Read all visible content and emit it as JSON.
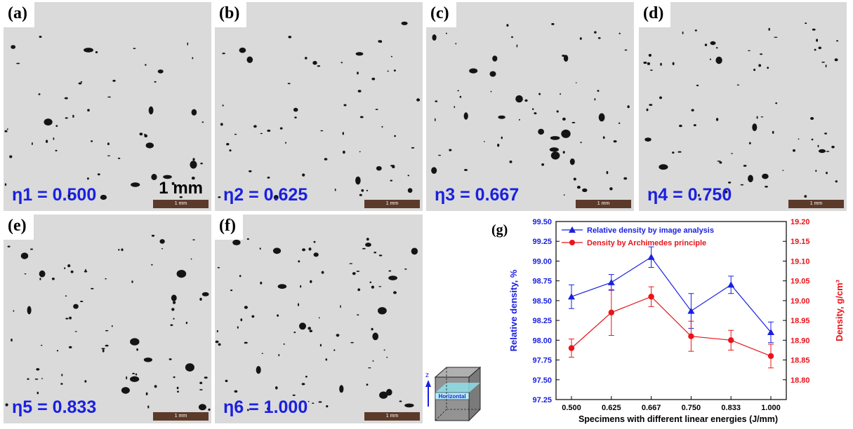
{
  "panels": [
    {
      "letter": "(a)",
      "eta": "η1 = 0.500",
      "scalebar": "1 mm",
      "scale_label": "1 mm"
    },
    {
      "letter": "(b)",
      "eta": "η2 = 0.625",
      "scalebar": "1 mm"
    },
    {
      "letter": "(c)",
      "eta": "η3 = 0.667",
      "scalebar": "1 mm"
    },
    {
      "letter": "(d)",
      "eta": "η4 = 0.750",
      "scalebar": "1 mm"
    },
    {
      "letter": "(e)",
      "eta": "η5 = 0.833",
      "scalebar": "1 mm"
    },
    {
      "letter": "(f)",
      "eta": "η6 = 1.000",
      "scalebar": "1 mm"
    }
  ],
  "cube": {
    "axis_label": "z",
    "plane_label": "Horizontal"
  },
  "chart_data": {
    "type": "line",
    "panel_letter": "(g)",
    "categories": [
      "0.500",
      "0.625",
      "0.667",
      "0.750",
      "0.833",
      "1.000"
    ],
    "xlabel": "Specimens with different linear energies (J/mm)",
    "ylabel": "Relative density, %",
    "y2label": "Density, g/cm³",
    "ylim": [
      97.25,
      99.5
    ],
    "yticks": [
      "97.25",
      "97.50",
      "97.75",
      "98.00",
      "98.25",
      "98.50",
      "98.75",
      "99.00",
      "99.25",
      "99.50"
    ],
    "y2lim": [
      18.75,
      19.2
    ],
    "y2ticks": [
      "18.80",
      "18.85",
      "18.90",
      "18.95",
      "19.00",
      "19.05",
      "19.10",
      "19.15",
      "19.20"
    ],
    "legend_position": "top-left",
    "series": [
      {
        "name": "Relative density by image analysis",
        "axis": "left",
        "marker": "triangle",
        "color": "#1a20e0",
        "values": [
          98.55,
          98.73,
          99.05,
          98.37,
          98.7,
          98.1
        ],
        "errors": [
          0.15,
          0.1,
          0.13,
          0.22,
          0.11,
          0.13
        ]
      },
      {
        "name": "Density by Archimedes principle",
        "axis": "right",
        "marker": "circle",
        "color": "#e8141a",
        "values": [
          18.88,
          18.97,
          19.01,
          18.91,
          18.9,
          18.86
        ],
        "errors": [
          0.023,
          0.058,
          0.025,
          0.038,
          0.025,
          0.03
        ]
      }
    ]
  }
}
